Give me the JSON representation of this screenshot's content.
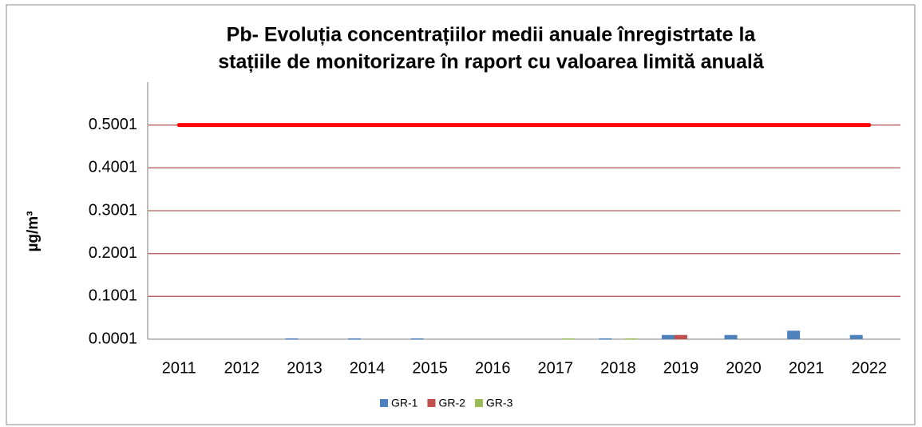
{
  "chart_data": {
    "type": "bar",
    "title_lines": [
      "Pb- Evoluția concentrațiilor medii anuale înregistrtate la",
      "stațiile de monitorizare în raport cu valoarea limită anuală"
    ],
    "y_label": "µg/m³",
    "categories": [
      "2011",
      "2012",
      "2013",
      "2014",
      "2015",
      "2016",
      "2017",
      "2018",
      "2019",
      "2020",
      "2021",
      "2022"
    ],
    "series": [
      {
        "name": "GR-1",
        "color": "#4f81bd",
        "values": [
          null,
          null,
          0.002,
          0.002,
          0.002,
          null,
          null,
          0.002,
          0.01,
          0.01,
          0.02,
          0.01
        ]
      },
      {
        "name": "GR-2",
        "color": "#c0504d",
        "values": [
          null,
          null,
          null,
          null,
          null,
          null,
          null,
          null,
          0.01,
          null,
          null,
          null
        ]
      },
      {
        "name": "GR-3",
        "color": "#9bbb59",
        "values": [
          null,
          null,
          null,
          null,
          null,
          null,
          0.002,
          0.002,
          null,
          null,
          null,
          null
        ]
      }
    ],
    "limit_line": {
      "color": "#ff0000",
      "values": [
        0.5001,
        0.5001,
        0.5001,
        0.5001,
        0.5001,
        0.5001,
        0.5001,
        0.5001,
        0.5001,
        0.5001,
        0.5001,
        0.5001
      ]
    },
    "ylim": [
      0.0001,
      0.6001
    ],
    "yticks": [
      0.0001,
      0.1001,
      0.2001,
      0.3001,
      0.4001,
      0.5001
    ],
    "grid": true,
    "grid_color": "#b5615f",
    "legend": "bottom"
  }
}
